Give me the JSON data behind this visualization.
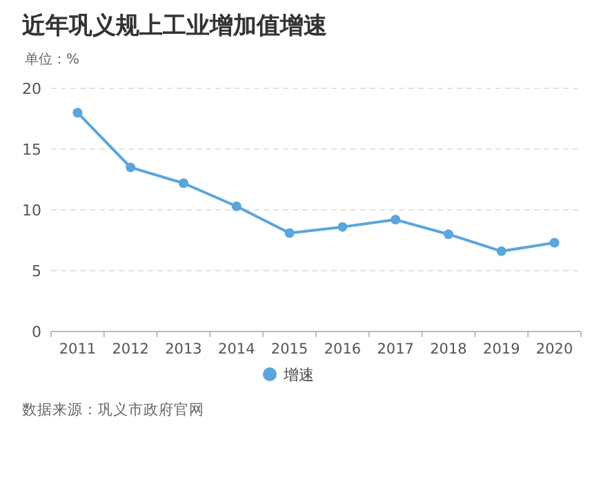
{
  "chart_data": {
    "type": "line",
    "title": "近年巩义规上工业增加值增速",
    "ylabel": "单位：%",
    "categories": [
      "2011",
      "2012",
      "2013",
      "2014",
      "2015",
      "2016",
      "2017",
      "2018",
      "2019",
      "2020"
    ],
    "series": [
      {
        "name": "增速",
        "color": "#5aa5dc",
        "values": [
          18.0,
          13.5,
          12.2,
          10.3,
          8.1,
          8.6,
          9.2,
          8.0,
          6.6,
          7.3
        ]
      }
    ],
    "ylim": [
      0,
      20
    ],
    "yticks": [
      0,
      5,
      10,
      15,
      20
    ],
    "grid": "y",
    "legend": "bottom",
    "marker": "circle",
    "line_style": "solid",
    "annotations": [
      "数据来源：巩义市政府官网"
    ]
  }
}
